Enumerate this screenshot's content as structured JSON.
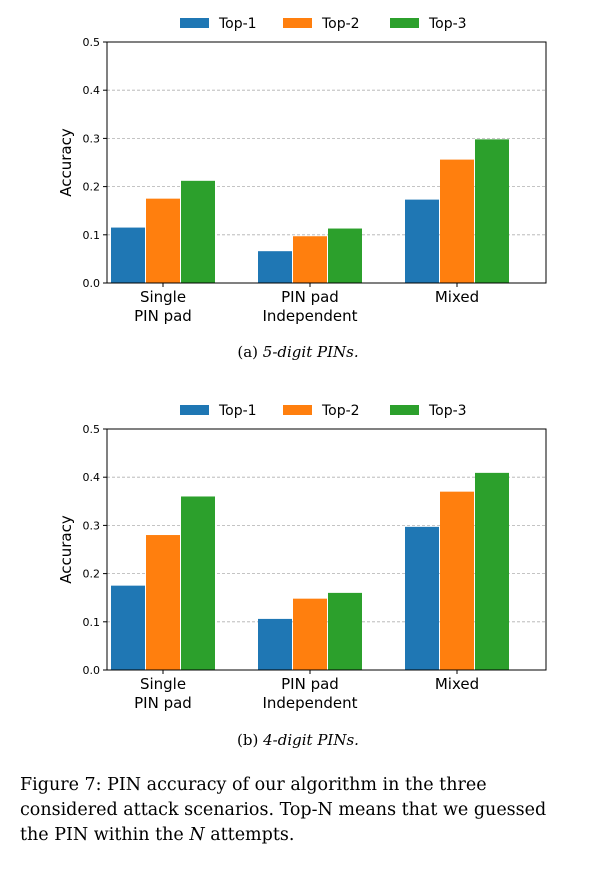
{
  "chart_data": [
    {
      "type": "bar",
      "categories": [
        "Single\nPIN pad",
        "PIN pad\nIndependent",
        "Mixed"
      ],
      "series": [
        {
          "name": "Top-1",
          "values": [
            0.115,
            0.066,
            0.173
          ]
        },
        {
          "name": "Top-2",
          "values": [
            0.175,
            0.097,
            0.256
          ]
        },
        {
          "name": "Top-3",
          "values": [
            0.212,
            0.113,
            0.298
          ]
        }
      ],
      "colors": [
        "#1f77b4",
        "#ff7f0e",
        "#2ca02c"
      ],
      "ylabel": "Accuracy",
      "ylim": [
        0,
        0.5
      ],
      "yticks": [
        "0.0",
        "0.1",
        "0.2",
        "0.3",
        "0.4",
        "0.5"
      ],
      "grid": "y-dashed",
      "legend": "top-center",
      "subcaption_label": "(a)",
      "subcaption_text": "5-digit PINs."
    },
    {
      "type": "bar",
      "categories": [
        "Single\nPIN pad",
        "PIN pad\nIndependent",
        "Mixed"
      ],
      "series": [
        {
          "name": "Top-1",
          "values": [
            0.175,
            0.106,
            0.297
          ]
        },
        {
          "name": "Top-2",
          "values": [
            0.28,
            0.148,
            0.37
          ]
        },
        {
          "name": "Top-3",
          "values": [
            0.36,
            0.16,
            0.409
          ]
        }
      ],
      "colors": [
        "#1f77b4",
        "#ff7f0e",
        "#2ca02c"
      ],
      "ylabel": "Accuracy",
      "ylim": [
        0,
        0.5
      ],
      "yticks": [
        "0.0",
        "0.1",
        "0.2",
        "0.3",
        "0.4",
        "0.5"
      ],
      "grid": "y-dashed",
      "legend": "top-center",
      "subcaption_label": "(b)",
      "subcaption_text": "4-digit PINs."
    }
  ],
  "caption": {
    "part1": "Figure 7: PIN accuracy of our algorithm in the three considered attack scenarios. Top-N means that we guessed the PIN within the ",
    "italic": "N",
    "part2": " attempts."
  }
}
